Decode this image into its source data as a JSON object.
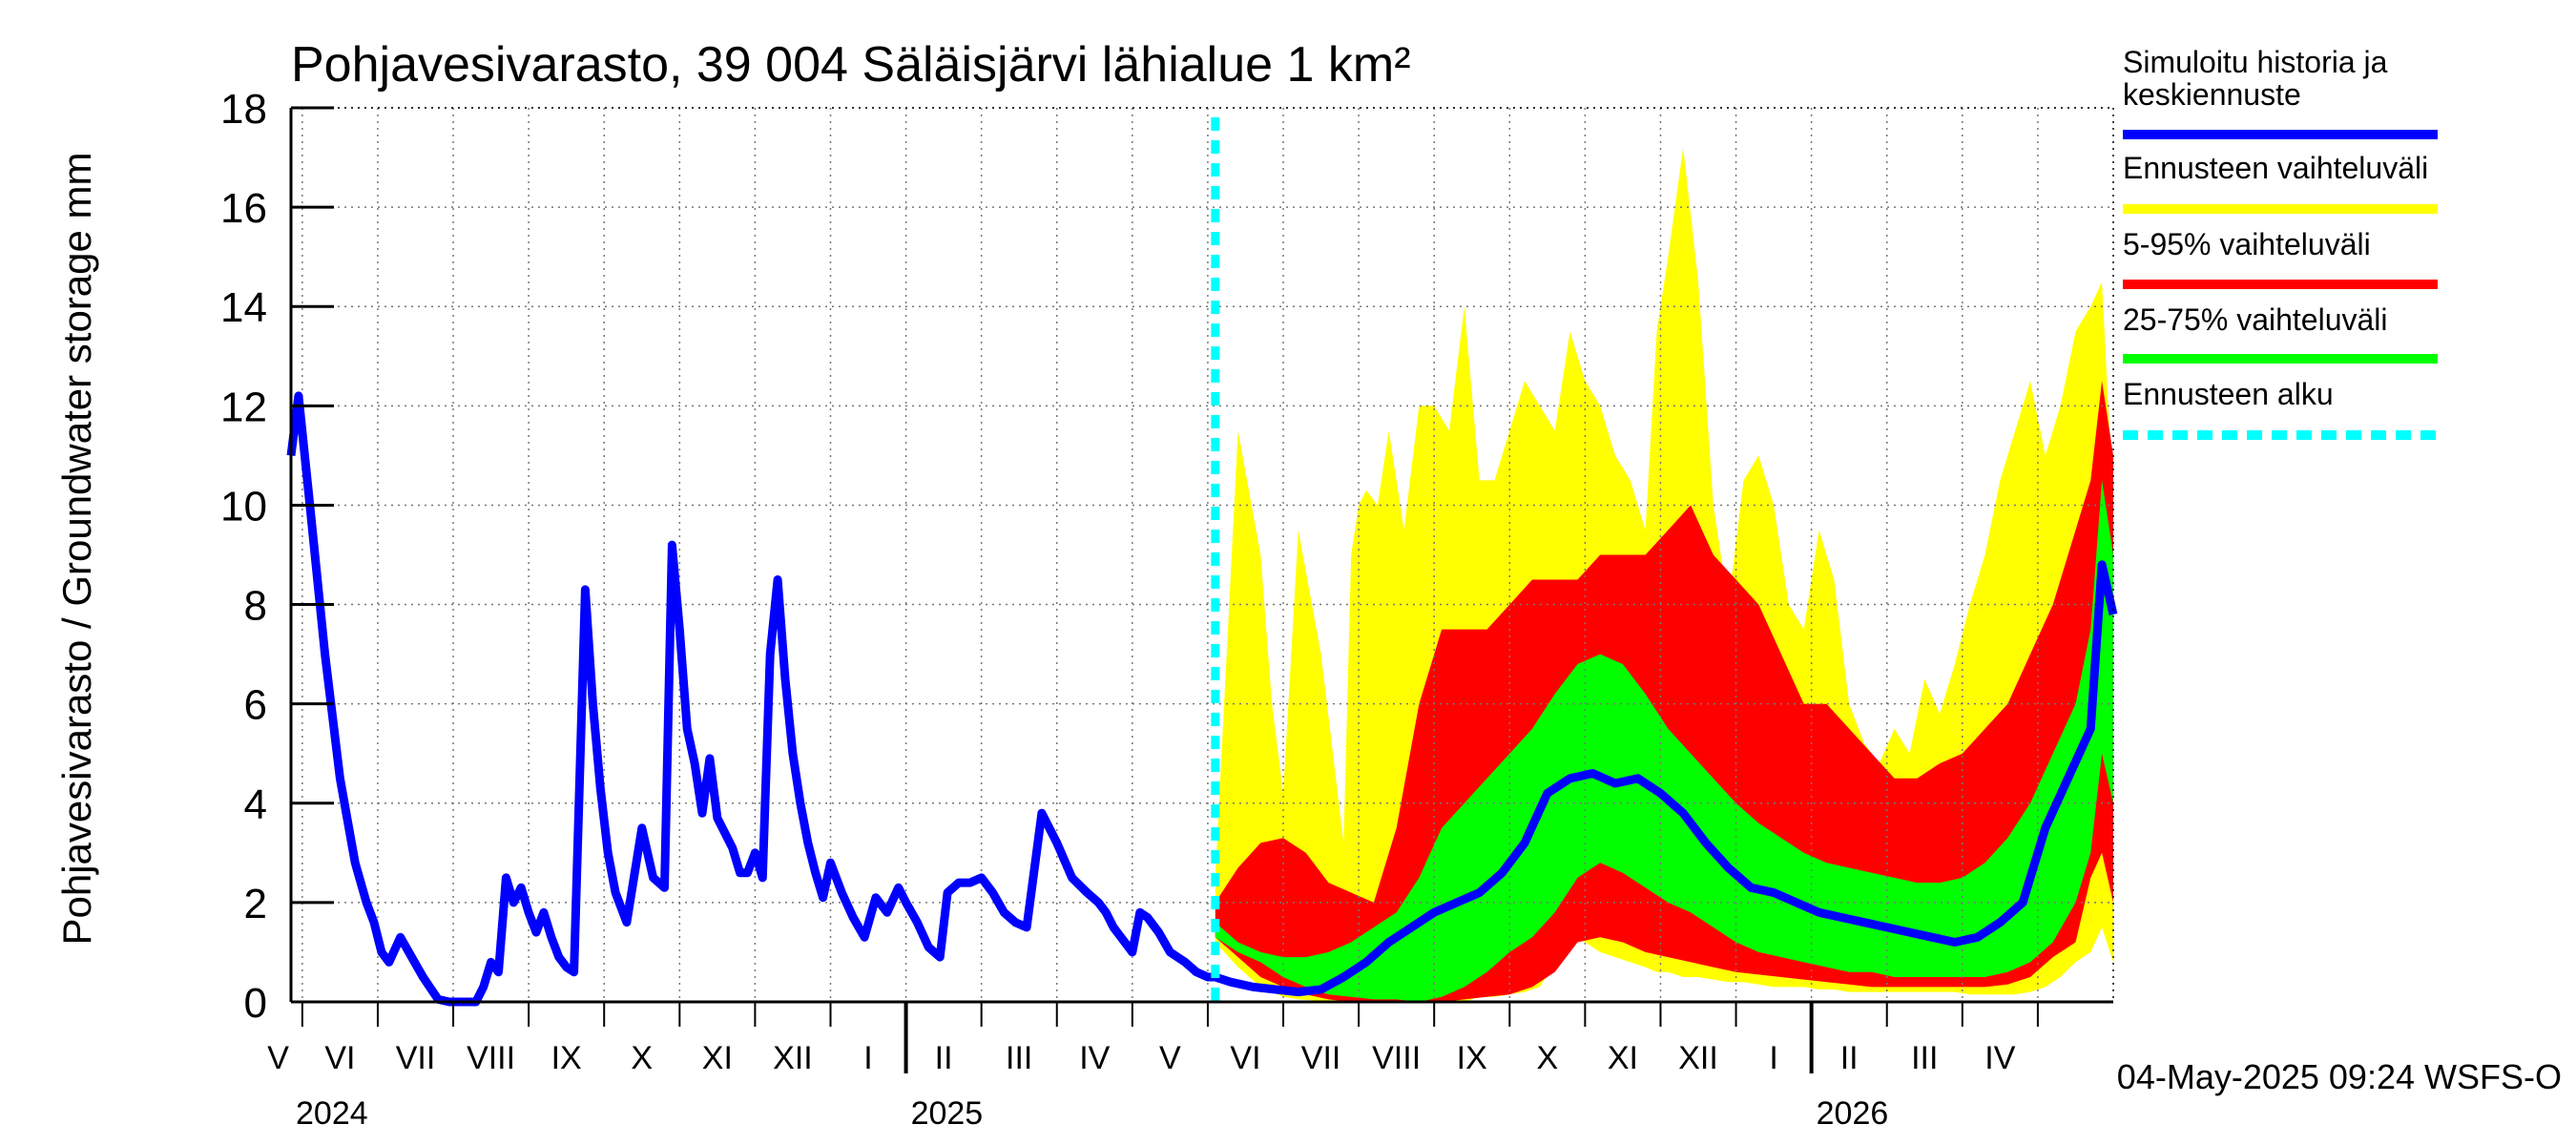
{
  "chart_data": {
    "type": "area",
    "title": "Pohjavesivarasto, 39 004 Säläisjärvi lähialue 1 km²",
    "ylabel": "Pohjavesivarasto / Groundwater storage   mm",
    "xlabel": "",
    "ylim": [
      0,
      18
    ],
    "yticks": [
      0,
      2,
      4,
      6,
      8,
      10,
      12,
      14,
      16,
      18
    ],
    "grid": true,
    "legend_position": "right",
    "x_unit": "months since 2024-04-01",
    "xlim": [
      0.85,
      25.0
    ],
    "month_labels": [
      "V",
      "VI",
      "VII",
      "VIII",
      "IX",
      "X",
      "XI",
      "XII",
      "I",
      "II",
      "III",
      "IV",
      "V",
      "VI",
      "VII",
      "VIII",
      "IX",
      "X",
      "XI",
      "XII",
      "I",
      "II",
      "III",
      "IV"
    ],
    "year_labels": [
      {
        "label": "2024",
        "x": 0.85
      },
      {
        "label": "2025",
        "x": 9.0
      },
      {
        "label": "2026",
        "x": 21.0
      }
    ],
    "forecast_start": 13.1,
    "series": [
      {
        "name": "Simuloitu historia ja keskiennuste",
        "color": "#0000ff",
        "x": [
          0.85,
          0.95,
          1.1,
          1.3,
          1.5,
          1.7,
          1.85,
          1.95,
          2.05,
          2.15,
          2.3,
          2.45,
          2.6,
          2.8,
          2.95,
          3.1,
          3.2,
          3.3,
          3.4,
          3.5,
          3.6,
          3.7,
          3.8,
          3.9,
          4.0,
          4.1,
          4.2,
          4.3,
          4.4,
          4.5,
          4.6,
          4.75,
          4.85,
          4.95,
          5.05,
          5.15,
          5.3,
          5.5,
          5.65,
          5.8,
          5.9,
          6.0,
          6.1,
          6.2,
          6.3,
          6.4,
          6.5,
          6.6,
          6.7,
          6.8,
          6.9,
          7.0,
          7.1,
          7.2,
          7.3,
          7.4,
          7.5,
          7.6,
          7.7,
          7.8,
          7.9,
          8.0,
          8.15,
          8.3,
          8.45,
          8.6,
          8.75,
          8.9,
          9.0,
          9.15,
          9.3,
          9.45,
          9.55,
          9.7,
          9.85,
          10.0,
          10.15,
          10.3,
          10.45,
          10.6,
          10.8,
          11.0,
          11.2,
          11.4,
          11.55,
          11.65,
          11.75,
          11.85,
          12.0,
          12.1,
          12.2,
          12.35,
          12.5,
          12.7,
          12.85,
          13.0,
          13.1,
          13.3,
          13.6,
          13.9,
          14.2,
          14.5,
          14.8,
          15.1,
          15.4,
          15.7,
          16.0,
          16.3,
          16.6,
          16.9,
          17.2,
          17.5,
          17.8,
          18.1,
          18.4,
          18.7,
          19.0,
          19.3,
          19.6,
          19.9,
          20.2,
          20.5,
          20.8,
          21.1,
          21.4,
          21.7,
          22.0,
          22.3,
          22.6,
          22.9,
          23.2,
          23.5,
          23.8,
          24.1,
          24.4,
          24.7,
          24.85,
          25.0
        ],
        "y": [
          11.0,
          12.2,
          10.0,
          7.0,
          4.5,
          2.8,
          2.0,
          1.6,
          1.0,
          0.8,
          1.3,
          0.9,
          0.5,
          0.05,
          0.0,
          0.0,
          0.0,
          0.0,
          0.3,
          0.8,
          0.6,
          2.5,
          2.0,
          2.3,
          1.8,
          1.4,
          1.8,
          1.3,
          0.9,
          0.7,
          0.6,
          8.3,
          6.0,
          4.3,
          3.0,
          2.2,
          1.6,
          3.5,
          2.5,
          2.3,
          9.2,
          7.5,
          5.5,
          4.8,
          3.8,
          4.9,
          3.7,
          3.4,
          3.1,
          2.6,
          2.6,
          3.0,
          2.5,
          7.0,
          8.5,
          6.5,
          5.0,
          4.0,
          3.2,
          2.6,
          2.1,
          2.8,
          2.2,
          1.7,
          1.3,
          2.1,
          1.8,
          2.3,
          2.0,
          1.6,
          1.1,
          0.9,
          2.2,
          2.4,
          2.4,
          2.5,
          2.2,
          1.8,
          1.6,
          1.5,
          3.8,
          3.2,
          2.5,
          2.2,
          2.0,
          1.8,
          1.5,
          1.3,
          1.0,
          1.8,
          1.7,
          1.4,
          1.0,
          0.8,
          0.6,
          0.5,
          0.5,
          0.4,
          0.3,
          0.25,
          0.2,
          0.25,
          0.5,
          0.8,
          1.2,
          1.5,
          1.8,
          2.0,
          2.2,
          2.6,
          3.2,
          4.2,
          4.5,
          4.6,
          4.4,
          4.5,
          4.2,
          3.8,
          3.2,
          2.7,
          2.3,
          2.2,
          2.0,
          1.8,
          1.7,
          1.6,
          1.5,
          1.4,
          1.3,
          1.2,
          1.3,
          1.6,
          2.0,
          3.5,
          4.5,
          5.5,
          8.8,
          7.8
        ]
      },
      {
        "name": "Ennusteen vaihteluväli",
        "color": "#ffff00",
        "x": [
          13.1,
          13.4,
          13.7,
          13.85,
          14.0,
          14.2,
          14.5,
          14.8,
          14.9,
          15.0,
          15.1,
          15.25,
          15.4,
          15.6,
          15.8,
          16.0,
          16.2,
          16.4,
          16.6,
          16.8,
          17.0,
          17.2,
          17.4,
          17.6,
          17.8,
          18.0,
          18.2,
          18.4,
          18.6,
          18.8,
          18.95,
          19.1,
          19.3,
          19.5,
          19.7,
          19.9,
          20.1,
          20.3,
          20.5,
          20.7,
          20.9,
          21.1,
          21.3,
          21.5,
          21.7,
          21.9,
          22.1,
          22.3,
          22.5,
          22.7,
          22.9,
          23.1,
          23.3,
          23.5,
          23.7,
          23.9,
          24.1,
          24.3,
          24.5,
          24.7,
          24.85,
          25.0
        ],
        "y_low": [
          1.2,
          0.7,
          0.3,
          0.2,
          0.1,
          0.05,
          0.02,
          0.0,
          0.0,
          0.0,
          0.0,
          0.0,
          0.0,
          0.0,
          0.0,
          0.0,
          0.0,
          0.0,
          0.1,
          0.1,
          0.15,
          0.2,
          0.3,
          0.8,
          1.3,
          1.2,
          1.0,
          0.9,
          0.8,
          0.7,
          0.6,
          0.6,
          0.5,
          0.5,
          0.45,
          0.4,
          0.4,
          0.35,
          0.3,
          0.3,
          0.3,
          0.25,
          0.25,
          0.2,
          0.2,
          0.2,
          0.2,
          0.2,
          0.2,
          0.2,
          0.2,
          0.15,
          0.15,
          0.15,
          0.15,
          0.2,
          0.3,
          0.5,
          0.8,
          1.0,
          1.5,
          0.8
        ],
        "y_high": [
          2.5,
          11.5,
          9.0,
          6.0,
          4.2,
          9.5,
          7.0,
          3.2,
          9.0,
          10.0,
          10.3,
          10.0,
          11.5,
          9.5,
          12.0,
          12.0,
          11.5,
          14.0,
          10.5,
          10.5,
          11.5,
          12.5,
          12.0,
          11.5,
          13.5,
          12.5,
          12.0,
          11.0,
          10.5,
          9.5,
          13.5,
          15.0,
          17.2,
          14.5,
          10.0,
          8.0,
          10.5,
          11.0,
          10.0,
          8.0,
          7.5,
          9.5,
          8.5,
          6.0,
          5.2,
          4.8,
          5.5,
          5.0,
          6.5,
          5.8,
          6.8,
          8.0,
          9.0,
          10.5,
          11.5,
          12.5,
          11.0,
          12.0,
          13.5,
          14.0,
          14.5,
          10.0
        ]
      },
      {
        "name": "5-95% vaihteluväli",
        "color": "#ff0000",
        "x": [
          13.1,
          13.4,
          13.7,
          14.0,
          14.3,
          14.6,
          14.9,
          15.2,
          15.5,
          15.8,
          16.1,
          16.4,
          16.7,
          17.0,
          17.3,
          17.6,
          17.9,
          18.2,
          18.5,
          18.8,
          19.1,
          19.4,
          19.7,
          20.0,
          20.3,
          20.6,
          20.9,
          21.2,
          21.5,
          21.8,
          22.1,
          22.4,
          22.7,
          23.0,
          23.3,
          23.6,
          23.9,
          24.2,
          24.5,
          24.7,
          24.85,
          25.0
        ],
        "y_low": [
          1.3,
          0.9,
          0.5,
          0.3,
          0.15,
          0.05,
          0.0,
          0.0,
          0.0,
          0.0,
          0.0,
          0.05,
          0.1,
          0.15,
          0.3,
          0.6,
          1.2,
          1.3,
          1.2,
          1.0,
          0.9,
          0.8,
          0.7,
          0.6,
          0.55,
          0.5,
          0.45,
          0.4,
          0.35,
          0.3,
          0.3,
          0.3,
          0.3,
          0.3,
          0.3,
          0.35,
          0.5,
          0.9,
          1.2,
          2.5,
          3.0,
          2.0
        ],
        "y_high": [
          2.0,
          2.7,
          3.2,
          3.3,
          3.0,
          2.4,
          2.2,
          2.0,
          3.5,
          6.0,
          7.5,
          7.5,
          7.5,
          8.0,
          8.5,
          8.5,
          8.5,
          9.0,
          9.0,
          9.0,
          9.5,
          10.0,
          9.0,
          8.5,
          8.0,
          7.0,
          6.0,
          6.0,
          5.5,
          5.0,
          4.5,
          4.5,
          4.8,
          5.0,
          5.5,
          6.0,
          7.0,
          8.0,
          9.5,
          10.5,
          12.5,
          11.0
        ]
      },
      {
        "name": "25-75% vaihteluväli",
        "color": "#00ff00",
        "x": [
          13.1,
          13.4,
          13.7,
          14.0,
          14.3,
          14.6,
          14.9,
          15.2,
          15.5,
          15.8,
          16.1,
          16.4,
          16.7,
          17.0,
          17.3,
          17.6,
          17.9,
          18.2,
          18.5,
          18.8,
          19.1,
          19.4,
          19.7,
          20.0,
          20.3,
          20.6,
          20.9,
          21.2,
          21.5,
          21.8,
          22.1,
          22.4,
          22.7,
          23.0,
          23.3,
          23.6,
          23.9,
          24.2,
          24.5,
          24.7,
          24.85,
          25.0
        ],
        "y_low": [
          1.3,
          1.0,
          0.8,
          0.5,
          0.3,
          0.15,
          0.1,
          0.05,
          0.05,
          0.0,
          0.1,
          0.3,
          0.6,
          1.0,
          1.3,
          1.8,
          2.5,
          2.8,
          2.6,
          2.3,
          2.0,
          1.8,
          1.5,
          1.2,
          1.0,
          0.9,
          0.8,
          0.7,
          0.6,
          0.6,
          0.5,
          0.5,
          0.5,
          0.5,
          0.5,
          0.6,
          0.8,
          1.2,
          2.0,
          3.0,
          5.0,
          4.0
        ],
        "y_high": [
          1.6,
          1.2,
          1.0,
          0.9,
          0.9,
          1.0,
          1.2,
          1.5,
          1.8,
          2.5,
          3.5,
          4.0,
          4.5,
          5.0,
          5.5,
          6.2,
          6.8,
          7.0,
          6.8,
          6.2,
          5.5,
          5.0,
          4.5,
          4.0,
          3.6,
          3.3,
          3.0,
          2.8,
          2.7,
          2.6,
          2.5,
          2.4,
          2.4,
          2.5,
          2.8,
          3.3,
          4.0,
          5.0,
          6.0,
          7.5,
          10.5,
          9.0
        ]
      }
    ],
    "forecast_marker_name": "Ennusteen alku",
    "forecast_marker_color": "#00ffff"
  },
  "legend": {
    "items": [
      {
        "label_line1": "Simuloitu historia ja",
        "label_line2": "keskiennuste",
        "color": "#0000ff",
        "style": "solid"
      },
      {
        "label_line1": "Ennusteen vaihteluväli",
        "label_line2": "",
        "color": "#ffff00",
        "style": "solid"
      },
      {
        "label_line1": "5-95% vaihteluväli",
        "label_line2": "",
        "color": "#ff0000",
        "style": "solid"
      },
      {
        "label_line1": "25-75% vaihteluväli",
        "label_line2": "",
        "color": "#00ff00",
        "style": "solid"
      },
      {
        "label_line1": "Ennusteen alku",
        "label_line2": "",
        "color": "#00ffff",
        "style": "dashed"
      }
    ]
  },
  "footer": {
    "timestamp": "04-May-2025 09:24 WSFS-O"
  }
}
